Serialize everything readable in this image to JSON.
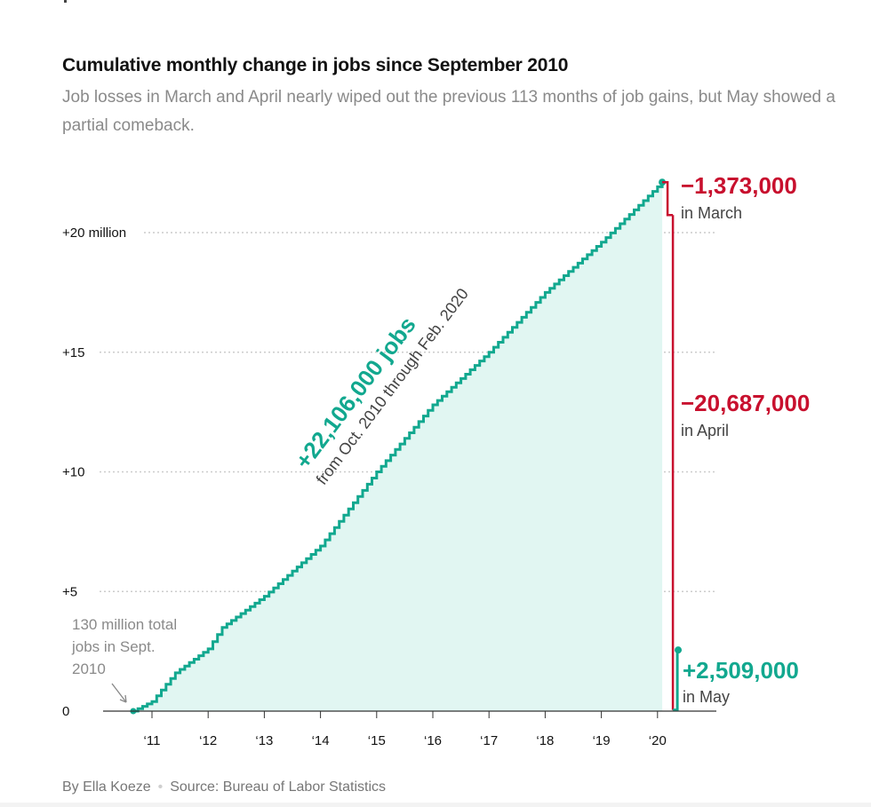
{
  "header": {
    "title": "Cumulative monthly change in jobs since September 2010",
    "subtitle": "Job losses in March and April nearly wiped out the previous 113 months of job gains, but May showed a partial comeback."
  },
  "footer": {
    "byline": "By Ella Koeze",
    "separator": "•",
    "source": "Source: Bureau of Labor Statistics"
  },
  "colors": {
    "gain": "#12a88f",
    "gain_fill": "#e1f6f2",
    "loss": "#c8102e",
    "grid": "#cccccc",
    "axis": "#333333"
  },
  "chart_data": {
    "type": "area",
    "title": "Cumulative monthly change in jobs since September 2010",
    "units": "millions of jobs",
    "x_start": "2010-09",
    "y_range": [
      0,
      22.106
    ],
    "ylim": [
      0,
      22.106
    ],
    "yticks": [
      {
        "value": 0,
        "label": "0"
      },
      {
        "value": 5,
        "label": "+5"
      },
      {
        "value": 10,
        "label": "+10"
      },
      {
        "value": 15,
        "label": "+15"
      },
      {
        "value": 20,
        "label": "+20 million"
      }
    ],
    "xticks": [
      {
        "year": 2011,
        "label": "‘11"
      },
      {
        "year": 2012,
        "label": "‘12"
      },
      {
        "year": 2013,
        "label": "‘13"
      },
      {
        "year": 2014,
        "label": "‘14"
      },
      {
        "year": 2015,
        "label": "‘15"
      },
      {
        "year": 2016,
        "label": "‘16"
      },
      {
        "year": 2017,
        "label": "‘17"
      },
      {
        "year": 2018,
        "label": "‘18"
      },
      {
        "year": 2019,
        "label": "‘19"
      },
      {
        "year": 2020,
        "label": "‘20"
      }
    ],
    "cumulative_anchors": [
      {
        "date": "2010-09",
        "value": 0
      },
      {
        "date": "2011-01",
        "value": 0.4
      },
      {
        "date": "2011-06",
        "value": 1.6
      },
      {
        "date": "2012-01",
        "value": 2.6
      },
      {
        "date": "2012-04",
        "value": 3.5
      },
      {
        "date": "2013-01",
        "value": 4.8
      },
      {
        "date": "2014-01",
        "value": 6.9
      },
      {
        "date": "2015-01",
        "value": 10.0
      },
      {
        "date": "2016-01",
        "value": 12.8
      },
      {
        "date": "2017-01",
        "value": 15.0
      },
      {
        "date": "2018-01",
        "value": 17.5
      },
      {
        "date": "2019-01",
        "value": 19.6
      },
      {
        "date": "2020-02",
        "value": 22.106
      }
    ],
    "monthly_changes": [
      {
        "month": "2020-03",
        "value": -1.373,
        "label": "−1,373,000",
        "sublabel": "in March"
      },
      {
        "month": "2020-04",
        "value": -20.687,
        "label": "−20,687,000",
        "sublabel": "in April"
      },
      {
        "month": "2020-05",
        "value": 2.509,
        "label": "+2,509,000",
        "sublabel": "in May"
      }
    ],
    "annotations": {
      "gain_label": "+22,106,000 jobs",
      "gain_sublabel": "from Oct. 2010 through Feb. 2020",
      "baseline_note": [
        "130 million total",
        "jobs in Sept.",
        "2010"
      ]
    }
  }
}
